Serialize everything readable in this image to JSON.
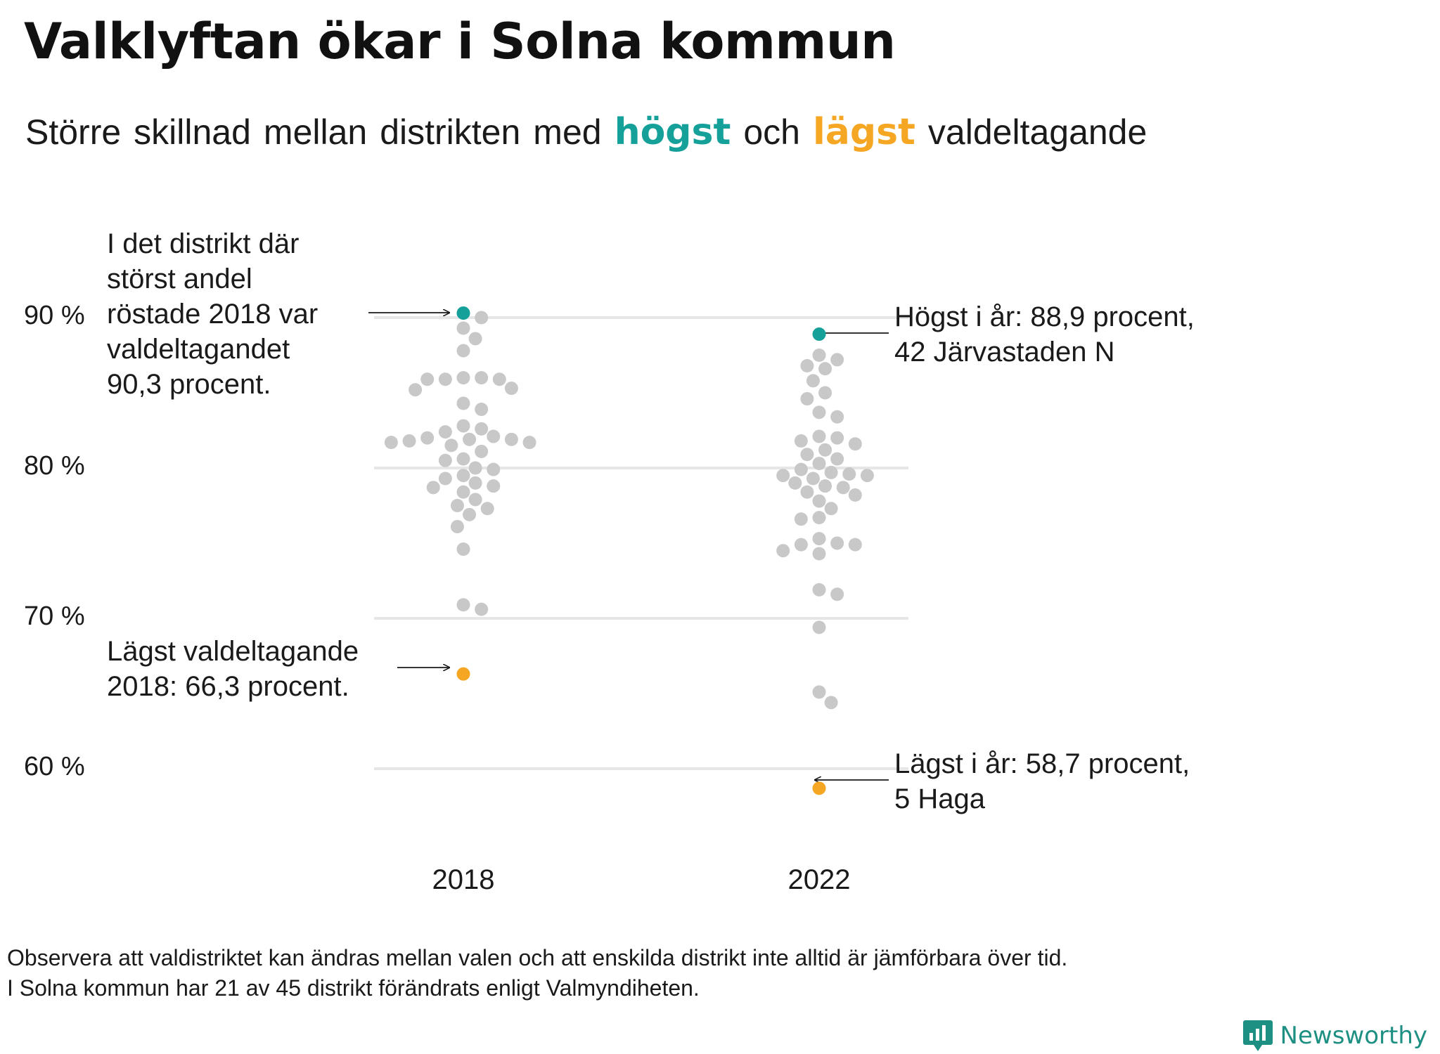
{
  "title": "Valklyftan ökar i Solna kommun",
  "subtitle": {
    "words": [
      "Större",
      "skillnad",
      "mellan",
      "distrikten",
      "med"
    ],
    "high_word": "högst",
    "middle_word": "och",
    "low_word": "lägst",
    "end_word": "valdeltagande"
  },
  "colors": {
    "high": "#15a19a",
    "low": "#f5a623",
    "other": "#c8c8c8",
    "grid": "#e6e6e6"
  },
  "annotations": {
    "top_2018": [
      "I det distrikt där",
      "störst andel",
      "röstade 2018 var",
      "valdeltagandet",
      "90,3 procent."
    ],
    "low_2018": [
      "Lägst valdeltagande",
      "2018: 66,3 procent."
    ],
    "high_2022": [
      "Högst i år: 88,9 procent,",
      "42 Järvastaden N"
    ],
    "low_2022": [
      "Lägst i år: 58,7 procent,",
      "5 Haga"
    ]
  },
  "footnote": [
    "Observera att valdistriktet kan ändras mellan valen och att enskilda distrikt inte alltid är jämförbara över tid.",
    "I Solna kommun har 21 av 45 distrikt förändrats enligt Valmyndiheten."
  ],
  "brand": {
    "name": "Newsworthy",
    "icon": "newsworthy-logo-icon"
  },
  "chart_data": {
    "type": "scatter",
    "title": "Valklyftan ökar i Solna kommun",
    "xlabel": "",
    "ylabel": "",
    "categories": [
      "2018",
      "2022"
    ],
    "y_ticks": [
      {
        "value": 90,
        "label": "90 %"
      },
      {
        "value": 80,
        "label": "80 %"
      },
      {
        "value": 70,
        "label": "70 %"
      },
      {
        "value": 60,
        "label": "60 %"
      }
    ],
    "ylim": [
      57,
      93
    ],
    "grid": true,
    "legend": "none",
    "series": [
      {
        "category": "2018",
        "max": 90.3,
        "min": 66.3,
        "values": [
          90.3,
          90.0,
          89.3,
          88.6,
          87.8,
          86.0,
          86.0,
          85.9,
          85.9,
          85.9,
          85.3,
          85.2,
          84.3,
          83.9,
          82.8,
          82.6,
          82.4,
          82.1,
          82.0,
          81.9,
          81.9,
          81.8,
          81.7,
          81.7,
          81.5,
          81.1,
          80.6,
          80.5,
          80.0,
          79.9,
          79.5,
          79.3,
          79.0,
          78.8,
          78.7,
          78.4,
          77.9,
          77.5,
          77.3,
          76.9,
          76.1,
          74.6,
          70.9,
          70.6,
          66.3
        ]
      },
      {
        "category": "2022",
        "max": 88.9,
        "min": 58.7,
        "values": [
          88.9,
          87.5,
          87.2,
          86.8,
          86.6,
          85.8,
          85.0,
          84.6,
          83.7,
          83.4,
          82.1,
          82.0,
          81.8,
          81.6,
          81.2,
          80.9,
          80.6,
          80.3,
          79.9,
          79.7,
          79.6,
          79.5,
          79.5,
          79.3,
          79.0,
          78.8,
          78.7,
          78.4,
          78.2,
          77.8,
          77.3,
          76.7,
          76.6,
          75.3,
          75.0,
          74.9,
          74.9,
          74.5,
          74.3,
          71.9,
          71.6,
          69.4,
          65.1,
          64.4,
          58.7
        ]
      }
    ]
  }
}
